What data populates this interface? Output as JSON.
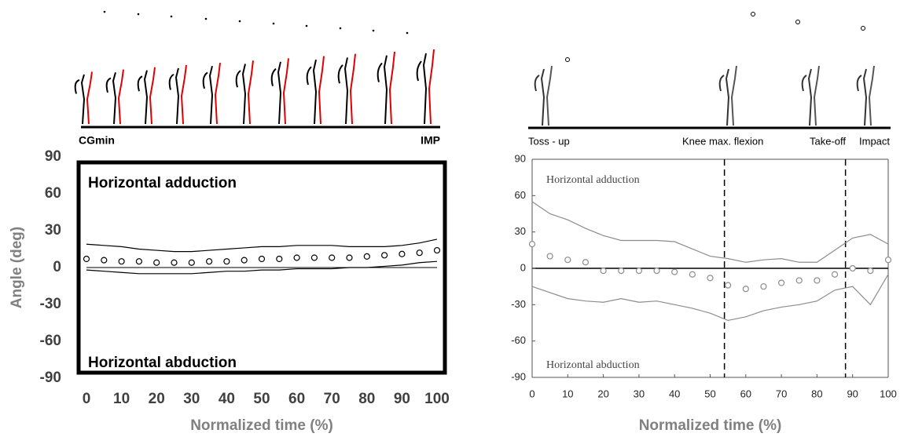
{
  "chart_data": [
    {
      "type": "line",
      "xlabel": "Normalized time (%)",
      "ylabel": "Angle (deg)",
      "annotations": [
        "Horizontal adduction",
        "Horizontal abduction"
      ],
      "phase_labels": [
        "CGmin",
        "IMP"
      ],
      "x": [
        0,
        5,
        10,
        15,
        20,
        25,
        30,
        35,
        40,
        45,
        50,
        55,
        60,
        65,
        70,
        75,
        80,
        85,
        90,
        95,
        100
      ],
      "series": [
        {
          "color": "#000000",
          "marker": "circle",
          "values": [
            7,
            6,
            5,
            5,
            4,
            4,
            4,
            5,
            5,
            6,
            7,
            7,
            8,
            8,
            8,
            8,
            9,
            10,
            11,
            12,
            14
          ]
        },
        {
          "color": "#000000",
          "values": [
            19,
            18,
            17,
            15,
            14,
            13,
            13,
            14,
            15,
            16,
            17,
            17,
            18,
            18,
            18,
            17,
            17,
            17,
            18,
            20,
            23
          ]
        },
        {
          "color": "#000000",
          "values": [
            -2,
            -3,
            -4,
            -5,
            -5,
            -5,
            -5,
            -4,
            -3,
            -3,
            -2,
            -2,
            -1,
            -1,
            -1,
            0,
            0,
            1,
            2,
            4,
            5
          ]
        }
      ],
      "xlim": [
        0,
        100
      ],
      "xticks": [
        0,
        10,
        20,
        30,
        40,
        50,
        60,
        70,
        80,
        90,
        100
      ],
      "ylim": [
        -90,
        90
      ],
      "yticks": [
        -90,
        -60,
        -30,
        0,
        30,
        60,
        90
      ]
    },
    {
      "type": "line",
      "xlabel": "Normalized time (%)",
      "annotations": [
        "Horizontal adduction",
        "Horizontal abduction"
      ],
      "phase_labels": [
        "Toss - up",
        "Knee max. flexion",
        "Take-off",
        "Impact"
      ],
      "vlines": [
        54,
        88
      ],
      "x": [
        0,
        5,
        10,
        15,
        20,
        25,
        30,
        35,
        40,
        45,
        50,
        55,
        60,
        65,
        70,
        75,
        80,
        85,
        90,
        95,
        100
      ],
      "series": [
        {
          "color": "#8c8c8c",
          "marker": "circle",
          "values": [
            20,
            10,
            7,
            5,
            -2,
            -2,
            -2,
            -2,
            -3,
            -5,
            -8,
            -14,
            -17,
            -15,
            -12,
            -10,
            -10,
            -5,
            0,
            -2,
            7
          ]
        },
        {
          "color": "#8c8c8c",
          "values": [
            55,
            45,
            40,
            33,
            27,
            23,
            23,
            23,
            22,
            16,
            10,
            8,
            5,
            7,
            8,
            5,
            5,
            15,
            25,
            28,
            20
          ]
        },
        {
          "color": "#8c8c8c",
          "values": [
            -15,
            -20,
            -25,
            -27,
            -28,
            -25,
            -28,
            -27,
            -30,
            -33,
            -37,
            -43,
            -40,
            -35,
            -32,
            -30,
            -27,
            -18,
            -15,
            -30,
            -5
          ]
        }
      ],
      "xlim": [
        0,
        100
      ],
      "xticks": [
        0,
        10,
        20,
        30,
        40,
        50,
        60,
        70,
        80,
        90,
        100
      ],
      "ylim": [
        -90,
        90
      ],
      "yticks": [
        -90,
        -60,
        -30,
        0,
        30,
        60,
        90
      ]
    }
  ]
}
